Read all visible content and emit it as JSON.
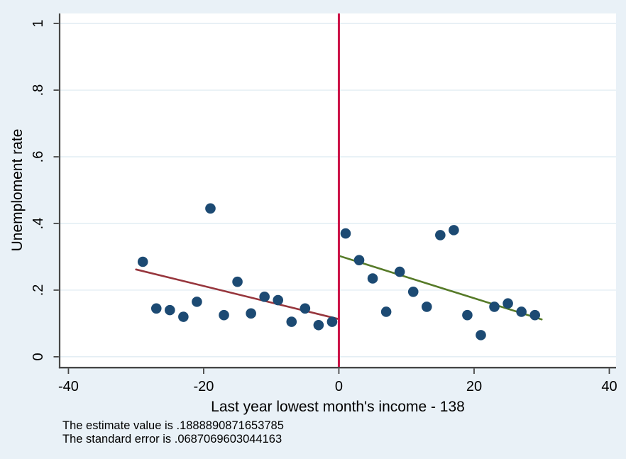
{
  "window": {
    "title": "Regression discontinuity plot"
  },
  "colors": {
    "background": "#e9f1f7",
    "plot_background": "#ffffff",
    "gridline": "#dce9f1",
    "axis_line": "#474747",
    "tick_text": "#000000",
    "scatter_point": "#1c4a73",
    "fit_line_left": "#97363d",
    "fit_line_right": "#567a28",
    "cutoff_line": "#cc1247"
  },
  "chart_data": {
    "type": "scatter",
    "title": "",
    "xlabel": "Last year lowest month's income - 138",
    "ylabel": "Unemploment rate",
    "xlim": [
      -41.2,
      41.0
    ],
    "ylim": [
      -0.03,
      1.03
    ],
    "x_ticks": [
      -40,
      -20,
      0,
      20,
      40
    ],
    "x_tick_labels": [
      "-40",
      "-20",
      "0",
      "20",
      "40"
    ],
    "y_ticks": [
      0,
      0.2,
      0.4,
      0.6,
      0.8,
      1
    ],
    "y_tick_labels": [
      "0",
      ".2",
      ".4",
      ".6",
      ".8",
      "1"
    ],
    "grid": "horizontal",
    "legend": "none",
    "series": [
      {
        "name": "binned-scatter-left",
        "kind": "scatter",
        "color_key": "scatter_point",
        "points": [
          [
            -29,
            0.285
          ],
          [
            -27,
            0.145
          ],
          [
            -25,
            0.14
          ],
          [
            -23,
            0.12
          ],
          [
            -21,
            0.165
          ],
          [
            -19,
            0.445
          ],
          [
            -17,
            0.125
          ],
          [
            -15,
            0.225
          ],
          [
            -13,
            0.13
          ],
          [
            -11,
            0.18
          ],
          [
            -9,
            0.17
          ],
          [
            -7,
            0.105
          ],
          [
            -5,
            0.145
          ],
          [
            -3,
            0.095
          ],
          [
            -1,
            0.105
          ]
        ]
      },
      {
        "name": "binned-scatter-right",
        "kind": "scatter",
        "color_key": "scatter_point",
        "points": [
          [
            1,
            0.37
          ],
          [
            3,
            0.29
          ],
          [
            5,
            0.235
          ],
          [
            7,
            0.135
          ],
          [
            9,
            0.255
          ],
          [
            11,
            0.195
          ],
          [
            13,
            0.15
          ],
          [
            15,
            0.365
          ],
          [
            17,
            0.38
          ],
          [
            19,
            0.125
          ],
          [
            21,
            0.065
          ],
          [
            23,
            0.15
          ],
          [
            25,
            0.16
          ],
          [
            27,
            0.135
          ],
          [
            29,
            0.125
          ]
        ]
      },
      {
        "name": "linear-fit-left",
        "kind": "line",
        "color_key": "fit_line_left",
        "points": [
          [
            -30,
            0.262
          ],
          [
            0,
            0.113
          ]
        ]
      },
      {
        "name": "linear-fit-right",
        "kind": "line",
        "color_key": "fit_line_right",
        "points": [
          [
            0,
            0.303
          ],
          [
            30,
            0.112
          ]
        ]
      },
      {
        "name": "cutoff-line",
        "kind": "vline",
        "color_key": "cutoff_line",
        "x": 0
      }
    ],
    "notes": [
      "The estimate value is .1888890871653785",
      "The standard error is .0687069603044163"
    ]
  }
}
